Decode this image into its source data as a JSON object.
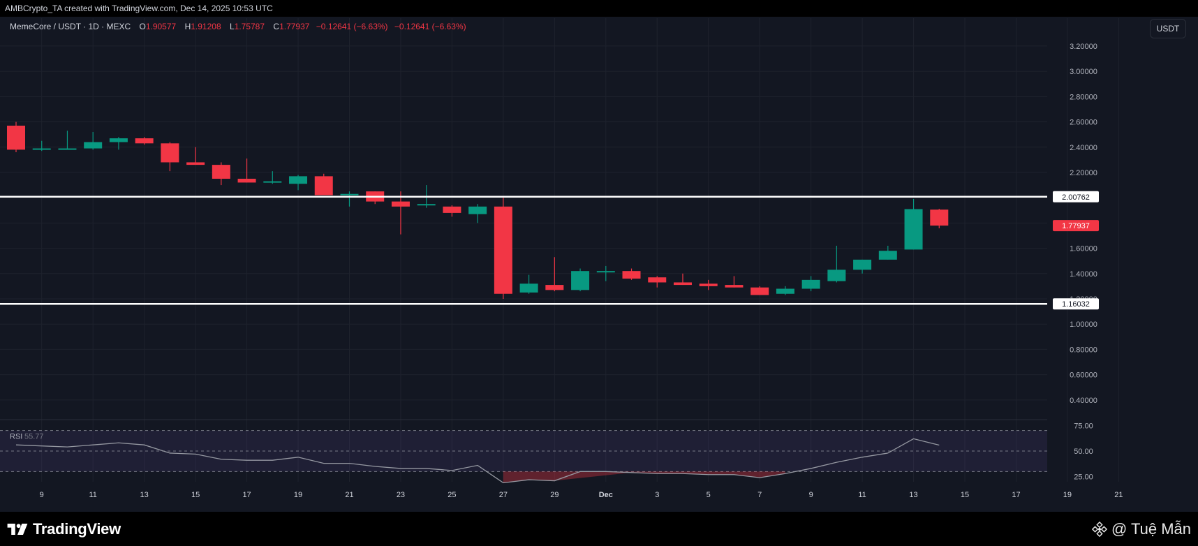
{
  "header": {
    "attribution": "AMBCrypto_TA created with TradingView.com, Dec 14, 2025 10:53 UTC"
  },
  "legend": {
    "symbol": "MemeCore / USDT · 1D · MEXC",
    "o_label": "O",
    "o_value": "1.90577",
    "h_label": "H",
    "h_value": "1.91208",
    "l_label": "L",
    "l_value": "1.75787",
    "c_label": "C",
    "c_value": "1.77937",
    "change": "−0.12641 (−6.63%)",
    "change2": "−0.12641 (−6.63%)"
  },
  "price_unit_button": "USDT",
  "brand": {
    "name": "TradingView"
  },
  "watermark": {
    "text": "@ Tuệ Mẫn"
  },
  "colors": {
    "up": "#089981",
    "down": "#f23645",
    "background": "#131722",
    "grid": "#1e222d",
    "level_line": "#ffffff",
    "rsi": "#9598a1"
  },
  "chart_data": [
    {
      "type": "candlestick",
      "title": "MemeCore / USDT · 1D · MEXC",
      "price_axis": {
        "ticks": [
          0.4,
          0.6,
          0.8,
          1.0,
          1.2,
          1.4,
          1.6,
          1.8,
          2.0,
          2.2,
          2.4,
          2.6,
          2.8,
          3.0,
          3.2
        ],
        "tick_labels": [
          "0.40000",
          "0.60000",
          "0.80000",
          "1.00000",
          "1.20000",
          "1.40000",
          "1.60000",
          "1.80000",
          "2.00000",
          "2.20000",
          "2.40000",
          "2.60000",
          "2.80000",
          "3.00000",
          "3.20000"
        ],
        "range": [
          0.25,
          3.31
        ]
      },
      "time_axis": {
        "ticks": [
          {
            "date": "2025-11-09",
            "label": "9"
          },
          {
            "date": "2025-11-11",
            "label": "11"
          },
          {
            "date": "2025-11-13",
            "label": "13"
          },
          {
            "date": "2025-11-15",
            "label": "15"
          },
          {
            "date": "2025-11-17",
            "label": "17"
          },
          {
            "date": "2025-11-19",
            "label": "19"
          },
          {
            "date": "2025-11-21",
            "label": "21"
          },
          {
            "date": "2025-11-23",
            "label": "23"
          },
          {
            "date": "2025-11-25",
            "label": "25"
          },
          {
            "date": "2025-11-27",
            "label": "27"
          },
          {
            "date": "2025-11-29",
            "label": "29"
          },
          {
            "date": "2025-12-01",
            "label": "Dec"
          },
          {
            "date": "2025-12-03",
            "label": "3"
          },
          {
            "date": "2025-12-05",
            "label": "5"
          },
          {
            "date": "2025-12-07",
            "label": "7"
          },
          {
            "date": "2025-12-09",
            "label": "9"
          },
          {
            "date": "2025-12-11",
            "label": "11"
          },
          {
            "date": "2025-12-13",
            "label": "13"
          },
          {
            "date": "2025-12-15",
            "label": "15"
          },
          {
            "date": "2025-12-17",
            "label": "17"
          },
          {
            "date": "2025-12-19",
            "label": "19"
          },
          {
            "date": "2025-12-21",
            "label": "21"
          }
        ]
      },
      "candles": [
        {
          "date": "2025-11-08",
          "o": 2.57,
          "h": 2.6,
          "l": 2.36,
          "c": 2.38
        },
        {
          "date": "2025-11-09",
          "o": 2.38,
          "h": 2.45,
          "l": 2.37,
          "c": 2.39
        },
        {
          "date": "2025-11-10",
          "o": 2.39,
          "h": 2.53,
          "l": 2.38,
          "c": 2.39
        },
        {
          "date": "2025-11-11",
          "o": 2.39,
          "h": 2.52,
          "l": 2.38,
          "c": 2.44
        },
        {
          "date": "2025-11-12",
          "o": 2.44,
          "h": 2.48,
          "l": 2.38,
          "c": 2.47
        },
        {
          "date": "2025-11-13",
          "o": 2.47,
          "h": 2.48,
          "l": 2.42,
          "c": 2.43
        },
        {
          "date": "2025-11-14",
          "o": 2.43,
          "h": 2.44,
          "l": 2.21,
          "c": 2.28
        },
        {
          "date": "2025-11-15",
          "o": 2.28,
          "h": 2.4,
          "l": 2.26,
          "c": 2.26
        },
        {
          "date": "2025-11-16",
          "o": 2.26,
          "h": 2.28,
          "l": 2.1,
          "c": 2.15
        },
        {
          "date": "2025-11-17",
          "o": 2.15,
          "h": 2.31,
          "l": 2.12,
          "c": 2.12
        },
        {
          "date": "2025-11-18",
          "o": 2.13,
          "h": 2.21,
          "l": 2.11,
          "c": 2.13
        },
        {
          "date": "2025-11-19",
          "o": 2.11,
          "h": 2.18,
          "l": 2.06,
          "c": 2.17
        },
        {
          "date": "2025-11-20",
          "o": 2.17,
          "h": 2.19,
          "l": 2.03,
          "c": 2.02
        },
        {
          "date": "2025-11-21",
          "o": 2.03,
          "h": 2.05,
          "l": 1.93,
          "c": 2.03
        },
        {
          "date": "2025-11-22",
          "o": 2.05,
          "h": 2.05,
          "l": 1.95,
          "c": 1.97
        },
        {
          "date": "2025-11-23",
          "o": 1.97,
          "h": 2.05,
          "l": 1.71,
          "c": 1.93
        },
        {
          "date": "2025-11-24",
          "o": 1.94,
          "h": 2.1,
          "l": 1.92,
          "c": 1.95
        },
        {
          "date": "2025-11-25",
          "o": 1.93,
          "h": 1.94,
          "l": 1.85,
          "c": 1.88
        },
        {
          "date": "2025-11-26",
          "o": 1.87,
          "h": 1.95,
          "l": 1.8,
          "c": 1.93
        },
        {
          "date": "2025-11-27",
          "o": 1.93,
          "h": 2.0,
          "l": 1.2,
          "c": 1.24
        },
        {
          "date": "2025-11-28",
          "o": 1.25,
          "h": 1.39,
          "l": 1.24,
          "c": 1.32
        },
        {
          "date": "2025-11-29",
          "o": 1.31,
          "h": 1.53,
          "l": 1.26,
          "c": 1.27
        },
        {
          "date": "2025-11-30",
          "o": 1.27,
          "h": 1.44,
          "l": 1.26,
          "c": 1.42
        },
        {
          "date": "2025-12-01",
          "o": 1.42,
          "h": 1.46,
          "l": 1.34,
          "c": 1.42
        },
        {
          "date": "2025-12-02",
          "o": 1.42,
          "h": 1.44,
          "l": 1.35,
          "c": 1.36
        },
        {
          "date": "2025-12-03",
          "o": 1.37,
          "h": 1.38,
          "l": 1.29,
          "c": 1.33
        },
        {
          "date": "2025-12-04",
          "o": 1.33,
          "h": 1.4,
          "l": 1.31,
          "c": 1.31
        },
        {
          "date": "2025-12-05",
          "o": 1.32,
          "h": 1.35,
          "l": 1.27,
          "c": 1.3
        },
        {
          "date": "2025-12-06",
          "o": 1.31,
          "h": 1.38,
          "l": 1.29,
          "c": 1.29
        },
        {
          "date": "2025-12-07",
          "o": 1.29,
          "h": 1.3,
          "l": 1.23,
          "c": 1.23
        },
        {
          "date": "2025-12-08",
          "o": 1.24,
          "h": 1.3,
          "l": 1.23,
          "c": 1.28
        },
        {
          "date": "2025-12-09",
          "o": 1.28,
          "h": 1.38,
          "l": 1.26,
          "c": 1.35
        },
        {
          "date": "2025-12-10",
          "o": 1.34,
          "h": 1.62,
          "l": 1.33,
          "c": 1.43
        },
        {
          "date": "2025-12-11",
          "o": 1.43,
          "h": 1.51,
          "l": 1.4,
          "c": 1.51
        },
        {
          "date": "2025-12-12",
          "o": 1.51,
          "h": 1.62,
          "l": 1.51,
          "c": 1.58
        },
        {
          "date": "2025-12-13",
          "o": 1.59,
          "h": 1.99,
          "l": 1.59,
          "c": 1.91
        },
        {
          "date": "2025-12-14",
          "o": 1.90577,
          "h": 1.91208,
          "l": 1.75787,
          "c": 1.77937
        }
      ],
      "levels": [
        {
          "value": 2.00762,
          "label": "2.00762"
        },
        {
          "value": 1.16032,
          "label": "1.16032"
        }
      ],
      "last_price": {
        "value": 1.77937,
        "label": "1.77937"
      }
    },
    {
      "type": "line",
      "title": "RSI",
      "last_value_label": "55.77",
      "y_ticks": [
        25,
        50,
        75
      ],
      "y_tick_labels": [
        "25.00",
        "50.00",
        "75.00"
      ],
      "band": [
        30,
        70
      ],
      "midline": 50,
      "range": [
        20,
        80
      ],
      "points": [
        {
          "date": "2025-11-08",
          "v": 56
        },
        {
          "date": "2025-11-09",
          "v": 55
        },
        {
          "date": "2025-11-10",
          "v": 54
        },
        {
          "date": "2025-11-11",
          "v": 56
        },
        {
          "date": "2025-11-12",
          "v": 58
        },
        {
          "date": "2025-11-13",
          "v": 56
        },
        {
          "date": "2025-11-14",
          "v": 48
        },
        {
          "date": "2025-11-15",
          "v": 47
        },
        {
          "date": "2025-11-16",
          "v": 42
        },
        {
          "date": "2025-11-17",
          "v": 41
        },
        {
          "date": "2025-11-18",
          "v": 41
        },
        {
          "date": "2025-11-19",
          "v": 44
        },
        {
          "date": "2025-11-20",
          "v": 38
        },
        {
          "date": "2025-11-21",
          "v": 38
        },
        {
          "date": "2025-11-22",
          "v": 35
        },
        {
          "date": "2025-11-23",
          "v": 33
        },
        {
          "date": "2025-11-24",
          "v": 33
        },
        {
          "date": "2025-11-25",
          "v": 31
        },
        {
          "date": "2025-11-26",
          "v": 36
        },
        {
          "date": "2025-11-27",
          "v": 19
        },
        {
          "date": "2025-11-28",
          "v": 22
        },
        {
          "date": "2025-11-29",
          "v": 21
        },
        {
          "date": "2025-11-30",
          "v": 30
        },
        {
          "date": "2025-12-01",
          "v": 30
        },
        {
          "date": "2025-12-02",
          "v": 29
        },
        {
          "date": "2025-12-03",
          "v": 28
        },
        {
          "date": "2025-12-04",
          "v": 28
        },
        {
          "date": "2025-12-05",
          "v": 27
        },
        {
          "date": "2025-12-06",
          "v": 27
        },
        {
          "date": "2025-12-07",
          "v": 24
        },
        {
          "date": "2025-12-08",
          "v": 28
        },
        {
          "date": "2025-12-09",
          "v": 33
        },
        {
          "date": "2025-12-10",
          "v": 39
        },
        {
          "date": "2025-12-11",
          "v": 44
        },
        {
          "date": "2025-12-12",
          "v": 48
        },
        {
          "date": "2025-12-13",
          "v": 62
        },
        {
          "date": "2025-12-14",
          "v": 55.77
        }
      ]
    }
  ]
}
